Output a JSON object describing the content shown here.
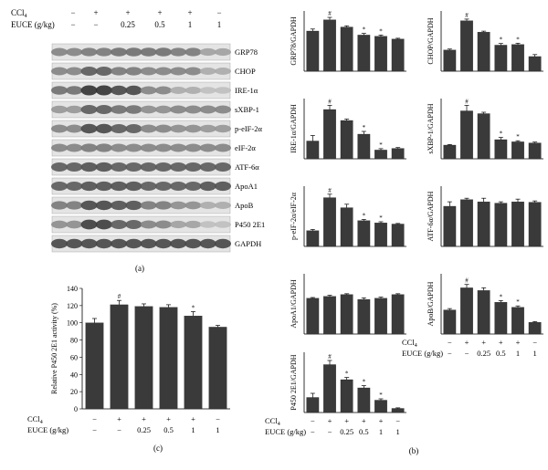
{
  "panel_a": {
    "ccl4_label": "CCl",
    "ccl4_sub": "4",
    "euce_label": "EUCE (g/kg)",
    "ccl4_signs": [
      "−",
      "+",
      "+",
      "+",
      "+",
      "−"
    ],
    "euce_values": [
      "−",
      "−",
      "0.25",
      "0.5",
      "1",
      "1"
    ],
    "blots": [
      "GRP78",
      "CHOP",
      "IRE-1α",
      "sXBP-1",
      "p-eIF-2α",
      "eIF-2α",
      "ATF-6α",
      "ApoA1",
      "ApoB",
      "P450 2E1",
      "GAPDH"
    ],
    "caption": "(a)"
  },
  "panel_b_caption": "(b)",
  "panel_c_caption": "(c)",
  "treatment_rows": {
    "ccl4_label": "CCl",
    "ccl4_sub": "4",
    "euce_label": "EUCE (g/kg)",
    "ccl4_signs": [
      "−",
      "+",
      "+",
      "+",
      "+",
      "−"
    ],
    "euce_values": [
      "−",
      "−",
      "0.25",
      "0.5",
      "1",
      "1"
    ]
  },
  "chart_data": [
    {
      "type": "bar",
      "panel": "c",
      "ylabel": "Relative P450 2E1 activity (%)",
      "ylim": [
        0,
        140
      ],
      "yticks": [
        0,
        20,
        40,
        60,
        80,
        100,
        120,
        140
      ],
      "values": [
        100,
        121,
        119,
        118,
        108,
        95
      ],
      "errors": [
        5,
        5,
        3,
        3,
        5,
        2
      ],
      "marks": [
        "",
        "#",
        "",
        "",
        "*",
        ""
      ]
    },
    {
      "type": "bar",
      "panel": "b",
      "ylabel": "GRP78/GAPDH",
      "values": [
        1.0,
        1.28,
        1.1,
        0.9,
        0.87,
        0.8
      ],
      "errors": [
        0.05,
        0.06,
        0.03,
        0.04,
        0.03,
        0.02
      ],
      "marks": [
        "",
        "#",
        "",
        "*",
        "*",
        ""
      ],
      "ymax": 1.5
    },
    {
      "type": "bar",
      "panel": "b",
      "ylabel": "CHOP/GAPDH",
      "values": [
        0.65,
        1.55,
        1.2,
        0.8,
        0.82,
        0.45
      ],
      "errors": [
        0.03,
        0.05,
        0.03,
        0.05,
        0.04,
        0.06
      ],
      "marks": [
        "",
        "#",
        "",
        "*",
        "*",
        ""
      ],
      "ymax": 1.85
    },
    {
      "type": "bar",
      "panel": "b",
      "ylabel": "IRE-1α/GAPDH",
      "values": [
        0.65,
        1.8,
        1.4,
        0.9,
        0.32,
        0.38
      ],
      "errors": [
        0.2,
        0.15,
        0.05,
        0.1,
        0.05,
        0.03
      ],
      "marks": [
        "",
        "#",
        "",
        "*",
        "*",
        ""
      ],
      "ymax": 2.2
    },
    {
      "type": "bar",
      "panel": "b",
      "ylabel": "sXBP-1/GAPDH",
      "values": [
        0.5,
        1.75,
        1.65,
        0.7,
        0.62,
        0.58
      ],
      "errors": [
        0.02,
        0.2,
        0.05,
        0.08,
        0.04,
        0.03
      ],
      "marks": [
        "",
        "#",
        "",
        "*",
        "*",
        ""
      ],
      "ymax": 2.2
    },
    {
      "type": "bar",
      "panel": "b",
      "ylabel": "p-eIF-2α/eIF-2α",
      "values": [
        0.55,
        1.7,
        1.35,
        0.9,
        0.82,
        0.78
      ],
      "errors": [
        0.04,
        0.12,
        0.12,
        0.04,
        0.04,
        0.02
      ],
      "marks": [
        "",
        "#",
        "",
        "*",
        "*",
        ""
      ],
      "ymax": 2.1
    },
    {
      "type": "bar",
      "panel": "b",
      "ylabel": "ATF-6α/GAPDH",
      "values": [
        0.9,
        1.05,
        1.0,
        0.97,
        1.0,
        0.99
      ],
      "errors": [
        0.1,
        0.03,
        0.08,
        0.03,
        0.06,
        0.03
      ],
      "marks": [
        "",
        "",
        "",
        "",
        "",
        ""
      ],
      "ymax": 1.35
    },
    {
      "type": "bar",
      "panel": "b",
      "ylabel": "ApoA1/GAPDH",
      "values": [
        0.95,
        1.0,
        1.05,
        0.92,
        0.95,
        1.05
      ],
      "errors": [
        0.02,
        0.03,
        0.02,
        0.04,
        0.03,
        0.02
      ],
      "marks": [
        "",
        "",
        "",
        "",
        "",
        ""
      ],
      "ymax": 1.6
    },
    {
      "type": "bar",
      "panel": "b",
      "ylabel": "ApoB/GAPDH",
      "values": [
        0.72,
        1.38,
        1.3,
        0.95,
        0.8,
        0.35
      ],
      "errors": [
        0.04,
        0.1,
        0.08,
        0.05,
        0.04,
        0.02
      ],
      "marks": [
        "",
        "#",
        "",
        "*",
        "*",
        ""
      ],
      "ymax": 1.8
    },
    {
      "type": "bar",
      "panel": "b",
      "ylabel": "P450 2E1/GAPDH",
      "values": [
        0.55,
        1.75,
        1.2,
        0.9,
        0.45,
        0.15
      ],
      "errors": [
        0.15,
        0.15,
        0.08,
        0.08,
        0.05,
        0.02
      ],
      "marks": [
        "",
        "#",
        "*",
        "*",
        "*",
        ""
      ],
      "ymax": 2.2
    }
  ]
}
